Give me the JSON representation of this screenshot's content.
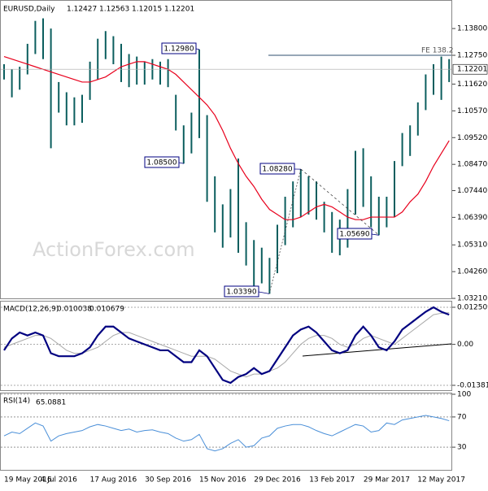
{
  "chart_data": [
    {
      "type": "ohlc",
      "title": "EURUSD,Daily",
      "header_values": [
        1.12427,
        1.12563,
        1.12015,
        1.12201
      ],
      "categories": [
        "19 May 2016",
        null,
        null,
        null,
        null,
        null,
        null,
        "4 Jul 2016",
        null,
        null,
        null,
        null,
        null,
        null,
        "17 Aug 2016",
        null,
        null,
        null,
        null,
        null,
        null,
        "30 Sep 2016",
        null,
        null,
        null,
        null,
        null,
        null,
        "15 Nov 2016",
        null,
        null,
        null,
        null,
        null,
        null,
        "29 Dec 2016",
        null,
        null,
        null,
        null,
        null,
        null,
        "13 Feb 2017",
        null,
        null,
        null,
        null,
        null,
        null,
        "29 Mar 2017",
        null,
        null,
        null,
        null,
        null,
        null,
        "12 May 2017",
        null
      ],
      "color": "#0b5e5e",
      "high": [
        1.124,
        1.122,
        1.123,
        1.132,
        1.141,
        1.142,
        1.138,
        1.117,
        1.113,
        1.111,
        1.112,
        1.125,
        1.134,
        1.137,
        1.135,
        1.132,
        1.128,
        1.127,
        1.125,
        1.126,
        1.125,
        1.126,
        1.112,
        1.1,
        1.105,
        1.1298,
        1.104,
        1.08,
        1.069,
        1.075,
        1.087,
        1.062,
        1.055,
        1.052,
        1.048,
        1.061,
        1.072,
        1.078,
        1.0828,
        1.08,
        1.078,
        1.07,
        1.066,
        1.063,
        1.075,
        1.09,
        1.091,
        1.08,
        1.072,
        1.072,
        1.086,
        1.097,
        1.1,
        1.109,
        1.12,
        1.124,
        1.127,
        1.126
      ],
      "low": [
        1.118,
        1.111,
        1.114,
        1.12,
        1.128,
        1.126,
        1.091,
        1.105,
        1.1,
        1.1,
        1.101,
        1.11,
        1.118,
        1.126,
        1.124,
        1.117,
        1.115,
        1.116,
        1.116,
        1.118,
        1.116,
        1.115,
        1.098,
        1.085,
        1.089,
        1.095,
        1.07,
        1.058,
        1.052,
        1.056,
        1.05,
        1.045,
        1.037,
        1.038,
        1.0339,
        1.042,
        1.053,
        1.06,
        1.064,
        1.065,
        1.063,
        1.058,
        1.05,
        1.049,
        1.052,
        1.065,
        1.068,
        1.06,
        1.0569,
        1.06,
        1.064,
        1.084,
        1.088,
        1.096,
        1.106,
        1.112,
        1.11,
        1.117
      ],
      "ma": {
        "color": "#e8001c",
        "values": [
          1.127,
          1.126,
          1.125,
          1.124,
          1.123,
          1.122,
          1.121,
          1.12,
          1.119,
          1.118,
          1.117,
          1.117,
          1.118,
          1.119,
          1.121,
          1.123,
          1.124,
          1.125,
          1.125,
          1.124,
          1.123,
          1.122,
          1.12,
          1.117,
          1.114,
          1.111,
          1.108,
          1.104,
          1.098,
          1.091,
          1.085,
          1.08,
          1.076,
          1.071,
          1.067,
          1.065,
          1.063,
          1.063,
          1.064,
          1.066,
          1.068,
          1.069,
          1.068,
          1.066,
          1.064,
          1.063,
          1.063,
          1.064,
          1.064,
          1.064,
          1.064,
          1.066,
          1.07,
          1.073,
          1.078,
          1.084,
          1.089,
          1.094
        ]
      },
      "ylim": [
        1.0318,
        1.1492
      ],
      "yticks": [
        {
          "value": 1.138,
          "label": "1.13800"
        },
        {
          "value": 1.1275,
          "label": "1.12750"
        },
        {
          "value": 1.1162,
          "label": "1.11620"
        },
        {
          "value": 1.1057,
          "label": "1.10570"
        },
        {
          "value": 1.0952,
          "label": "1.09520"
        },
        {
          "value": 1.0847,
          "label": "1.08470"
        },
        {
          "value": 1.0744,
          "label": "1.07440"
        },
        {
          "value": 1.0639,
          "label": "1.06390"
        },
        {
          "value": 1.0531,
          "label": "1.05310"
        },
        {
          "value": 1.0426,
          "label": "1.04260"
        },
        {
          "value": 1.0321,
          "label": "1.03210"
        }
      ],
      "last_price": 1.12201,
      "fe_level": {
        "value": 1.1275,
        "label": "FE 138.2"
      },
      "annotations": [
        {
          "value": 1.1298,
          "label": "1.12980"
        },
        {
          "value": 1.085,
          "label": "1.08500"
        },
        {
          "value": 1.0828,
          "label": "1.08280"
        },
        {
          "value": 1.0569,
          "label": "1.05690"
        },
        {
          "value": 1.0339,
          "label": "1.03390"
        }
      ],
      "watermark": "ActionForex.com"
    },
    {
      "type": "macd",
      "title": "MACD(12,26,9)",
      "header_values": [
        0.010038,
        0.010679
      ],
      "series": [
        {
          "color": "#000080",
          "values": [
            -0.002,
            0.002,
            0.004,
            0.003,
            0.004,
            0.003,
            -0.003,
            -0.004,
            -0.004,
            -0.004,
            -0.003,
            -0.001,
            0.003,
            0.006,
            0.006,
            0.004,
            0.002,
            0.001,
            0,
            -0.001,
            -0.002,
            -0.002,
            -0.004,
            -0.006,
            -0.006,
            -0.002,
            -0.004,
            -0.008,
            -0.012,
            -0.013,
            -0.011,
            -0.01,
            -0.008,
            -0.01,
            -0.009,
            -0.005,
            -0.001,
            0.003,
            0.005,
            0.006,
            0.004,
            0.001,
            -0.002,
            -0.003,
            -0.002,
            0.003,
            0.006,
            0.003,
            -0.001,
            -0.002,
            0.001,
            0.005,
            0.007,
            0.009,
            0.011,
            0.0125,
            0.011,
            0.01
          ]
        },
        {
          "color": "#a8a8a8",
          "values": [
            -0.001,
            0,
            0.001,
            0.002,
            0.003,
            0.003,
            0.002,
            0,
            -0.002,
            -0.003,
            -0.003,
            -0.002,
            -0.001,
            0.001,
            0.003,
            0.004,
            0.004,
            0.003,
            0.002,
            0.001,
            0,
            -0.001,
            -0.002,
            -0.003,
            -0.004,
            -0.004,
            -0.004,
            -0.005,
            -0.007,
            -0.009,
            -0.01,
            -0.011,
            -0.01,
            -0.01,
            -0.009,
            -0.008,
            -0.006,
            -0.003,
            0,
            0.002,
            0.003,
            0.003,
            0.002,
            0,
            -0.001,
            0,
            0.002,
            0.003,
            0.002,
            0.001,
            0,
            0.002,
            0.004,
            0.006,
            0.008,
            0.01,
            0.0105,
            0.0107
          ]
        }
      ],
      "ylim": [
        -0.01573,
        0.0147
      ],
      "yticks": [
        0.012509,
        {
          "value": 0,
          "label": "0.00"
        },
        -0.013813
      ]
    },
    {
      "type": "line",
      "title": "RSI(14)",
      "header_values": [
        65.0881
      ],
      "series": [
        {
          "color": "#4a8fd8",
          "values": [
            45,
            50,
            48,
            55,
            62,
            58,
            38,
            45,
            48,
            50,
            52,
            57,
            60,
            58,
            55,
            52,
            54,
            50,
            52,
            53,
            50,
            48,
            42,
            38,
            40,
            47,
            28,
            25,
            28,
            35,
            40,
            30,
            32,
            42,
            45,
            55,
            58,
            60,
            60,
            57,
            52,
            48,
            45,
            50,
            55,
            60,
            58,
            50,
            52,
            62,
            60,
            66,
            68,
            70,
            72,
            70,
            68,
            65
          ]
        }
      ],
      "ylim": [
        0,
        100
      ],
      "yticks": [
        100,
        70,
        30
      ]
    }
  ]
}
